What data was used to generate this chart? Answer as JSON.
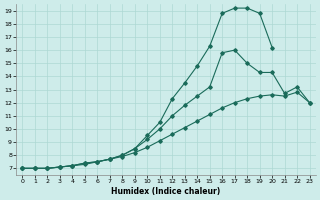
{
  "xlabel": "Humidex (Indice chaleur)",
  "background_color": "#ceecea",
  "line_color": "#1a6b5a",
  "grid_color": "#aed8d4",
  "xlim": [
    -0.5,
    23.5
  ],
  "ylim": [
    6.5,
    19.5
  ],
  "xticks": [
    0,
    1,
    2,
    3,
    4,
    5,
    6,
    7,
    8,
    9,
    10,
    11,
    12,
    13,
    14,
    15,
    16,
    17,
    18,
    19,
    20,
    21,
    22,
    23
  ],
  "yticks": [
    7,
    8,
    9,
    10,
    11,
    12,
    13,
    14,
    15,
    16,
    17,
    18,
    19
  ],
  "curve1_x": [
    0,
    1,
    2,
    3,
    4,
    5,
    6,
    7,
    8,
    9,
    10,
    11,
    12,
    13,
    14,
    15,
    16,
    17,
    18,
    19,
    20
  ],
  "curve1_y": [
    7,
    7,
    7,
    7.1,
    7.2,
    7.4,
    7.5,
    7.7,
    8.0,
    8.5,
    9.5,
    10.5,
    12.3,
    13.5,
    14.8,
    16.3,
    18.8,
    19.2,
    19.2,
    18.8,
    16.2
  ],
  "curve2_x": [
    0,
    1,
    2,
    3,
    4,
    5,
    6,
    7,
    8,
    9,
    10,
    11,
    12,
    13,
    14,
    15,
    16,
    17,
    18,
    19,
    20,
    21,
    22,
    23
  ],
  "curve2_y": [
    7,
    7,
    7,
    7.1,
    7.2,
    7.4,
    7.5,
    7.7,
    8.0,
    8.5,
    9.2,
    10.0,
    11.0,
    11.8,
    12.5,
    13.2,
    15.8,
    16.0,
    15.0,
    14.3,
    14.3,
    12.7,
    13.2,
    12.0
  ],
  "curve3_x": [
    0,
    1,
    2,
    3,
    4,
    5,
    6,
    7,
    8,
    9,
    10,
    11,
    12,
    13,
    14,
    15,
    16,
    17,
    18,
    19,
    20,
    21,
    22,
    23
  ],
  "curve3_y": [
    7,
    7,
    7,
    7.1,
    7.2,
    7.3,
    7.5,
    7.7,
    7.9,
    8.2,
    8.6,
    9.1,
    9.6,
    10.1,
    10.6,
    11.1,
    11.6,
    12.0,
    12.3,
    12.5,
    12.6,
    12.5,
    12.8,
    12.0
  ]
}
